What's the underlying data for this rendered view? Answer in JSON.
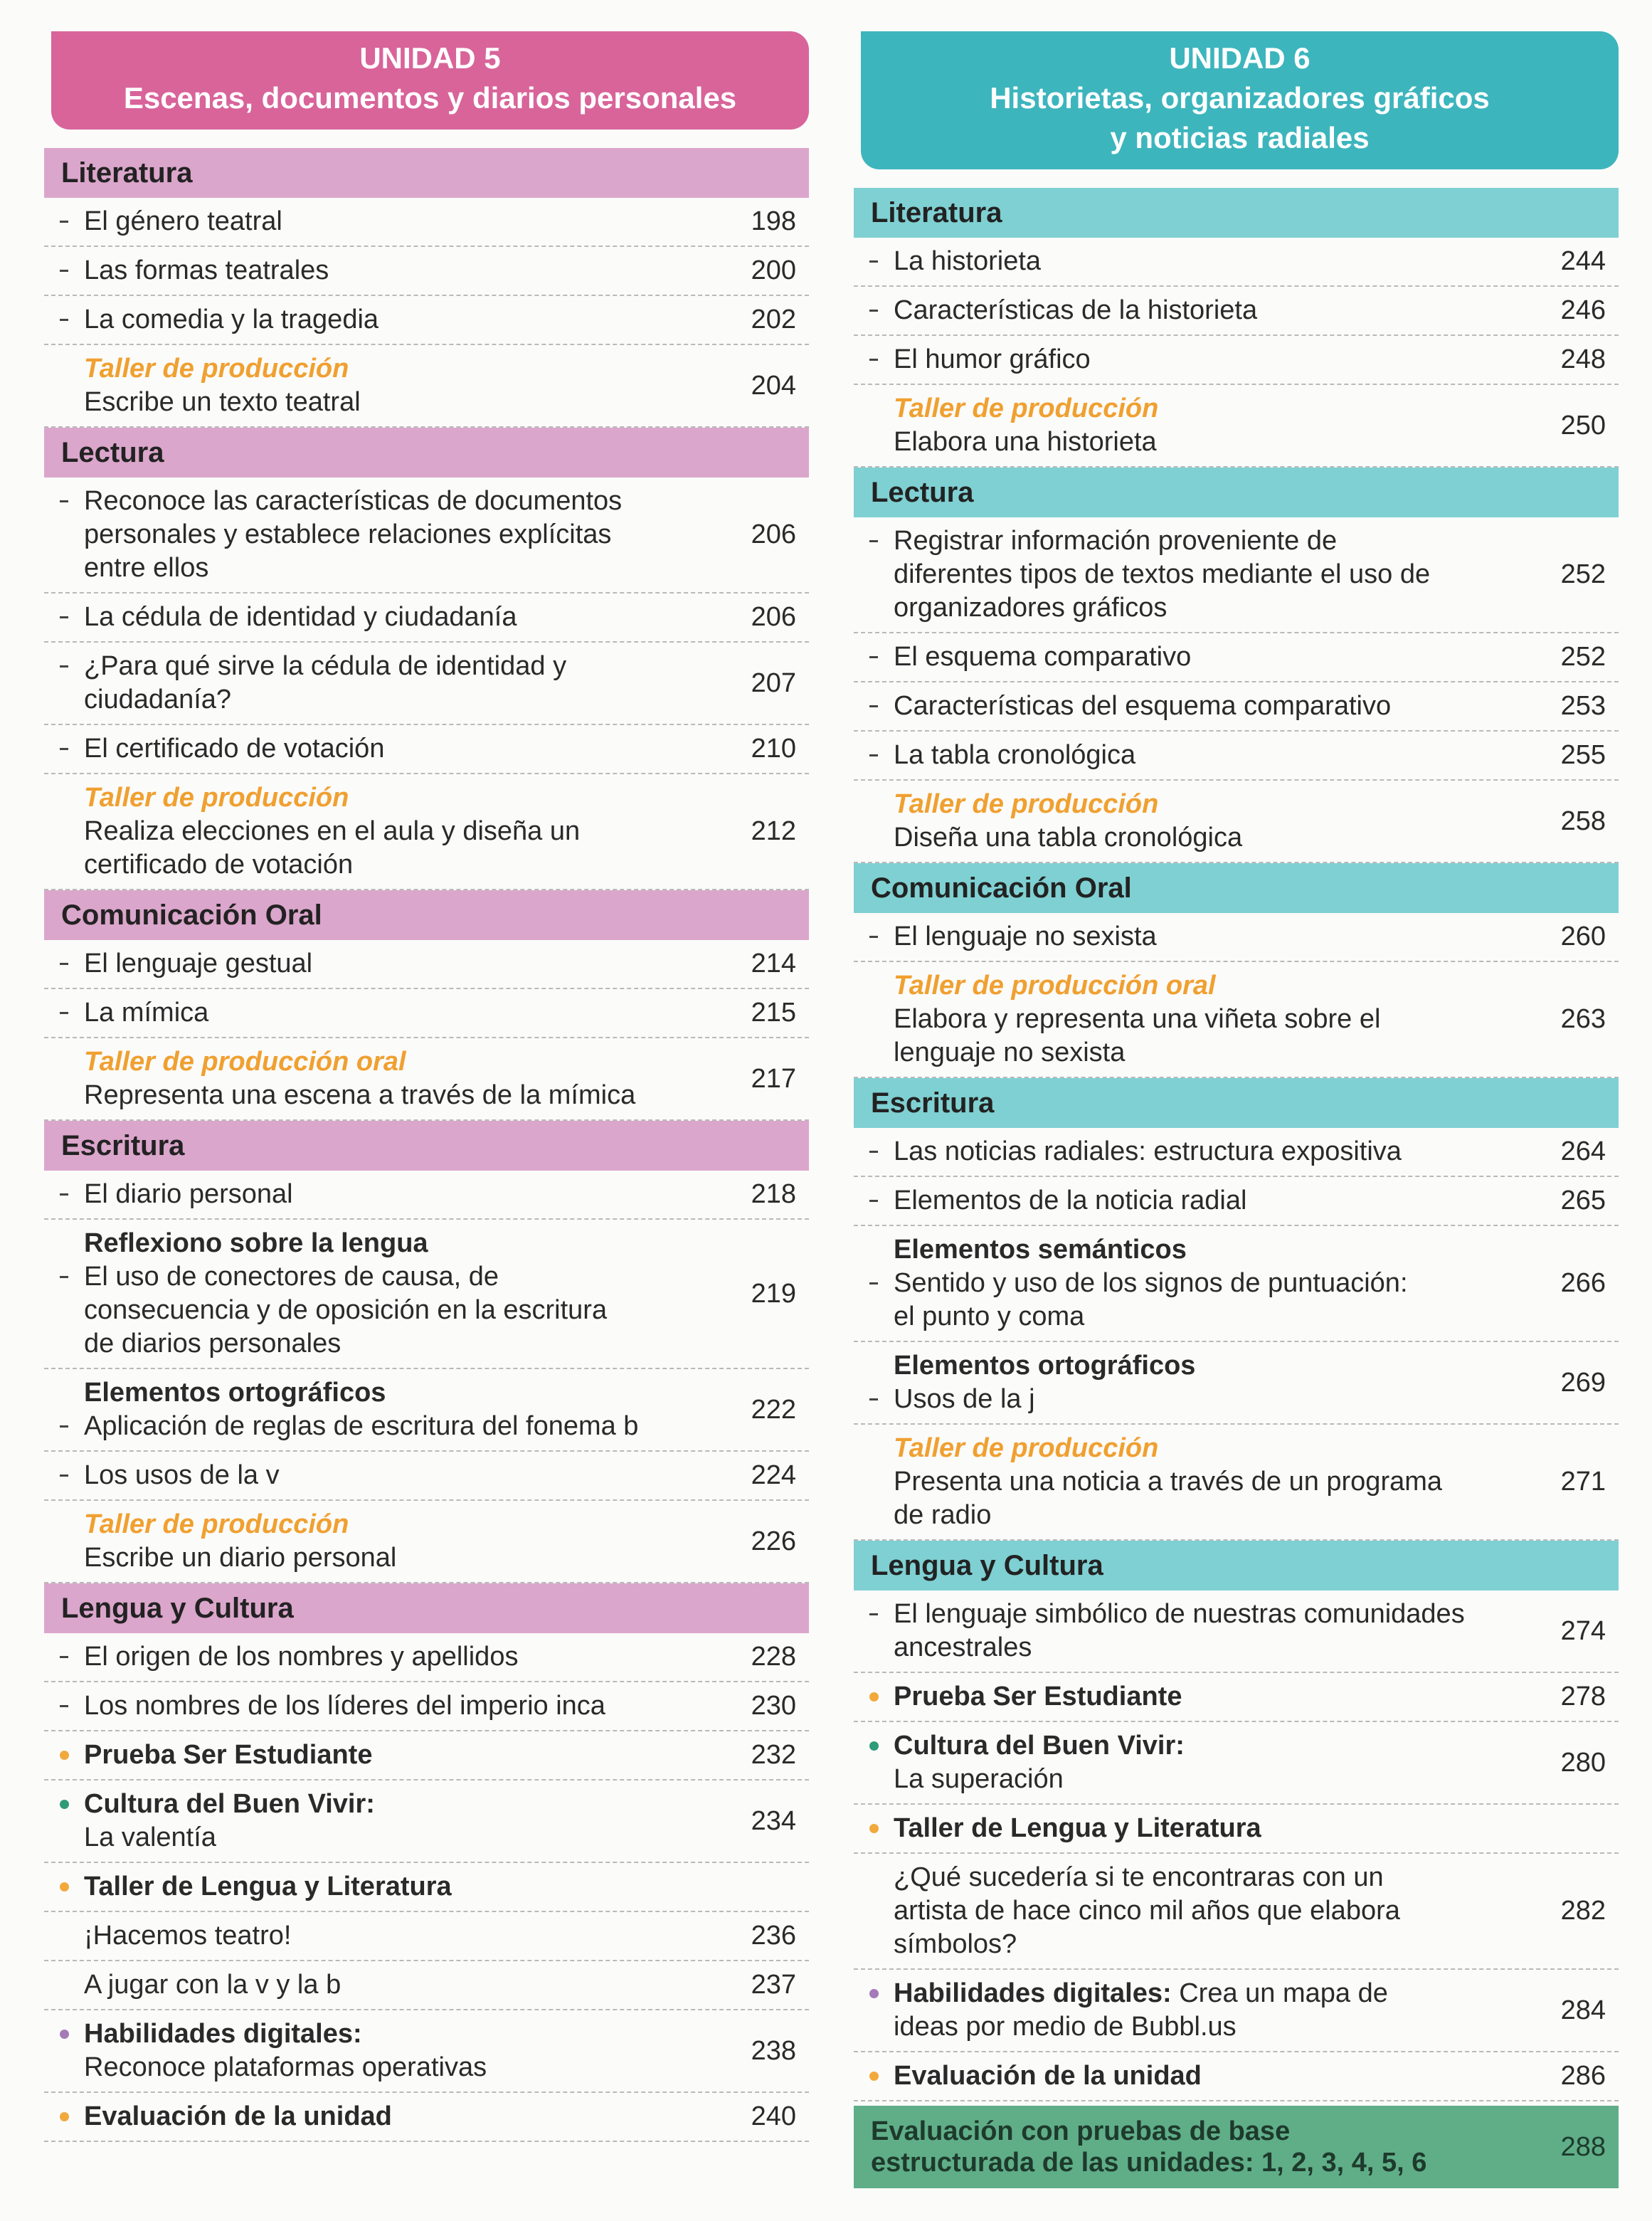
{
  "units": [
    {
      "title": "UNIDAD 5",
      "subtitle": [
        "Escenas, documentos y diarios personales"
      ],
      "header_color": "#d8649a",
      "section_color": "#dba6cb",
      "sections": [
        {
          "heading": "Literatura",
          "items": [
            {
              "marker": "dash",
              "lines": [
                "El género teatral"
              ],
              "page": 198
            },
            {
              "marker": "dash",
              "lines": [
                "Las formas teatrales"
              ],
              "page": 200
            },
            {
              "marker": "dash",
              "lines": [
                "La comedia y la tragedia"
              ],
              "page": 202
            },
            {
              "tag": "Taller de producción",
              "lines": [
                "Escribe un texto teatral"
              ],
              "page": 204
            }
          ]
        },
        {
          "heading": "Lectura",
          "items": [
            {
              "marker": "dash",
              "lines": [
                "Reconoce las características de documentos",
                "personales y establece relaciones explícitas",
                "entre ellos"
              ],
              "page": 206
            },
            {
              "marker": "dash",
              "lines": [
                "La cédula de identidad y ciudadanía"
              ],
              "page": 206
            },
            {
              "marker": "dash",
              "lines": [
                "¿Para qué sirve la cédula de identidad y",
                "ciudadanía?"
              ],
              "page": 207
            },
            {
              "marker": "dash",
              "lines": [
                "El certificado de votación"
              ],
              "page": 210
            },
            {
              "tag": "Taller de producción",
              "lines": [
                "Realiza elecciones en el aula y diseña un",
                "certificado de votación"
              ],
              "page": 212
            }
          ]
        },
        {
          "heading": "Comunicación Oral",
          "items": [
            {
              "marker": "dash",
              "lines": [
                "El lenguaje gestual"
              ],
              "page": 214
            },
            {
              "marker": "dash",
              "lines": [
                "La mímica"
              ],
              "page": 215
            },
            {
              "tag": "Taller de producción oral",
              "lines": [
                "Representa una escena a través de la mímica"
              ],
              "page": 217
            }
          ]
        },
        {
          "heading": "Escritura",
          "items": [
            {
              "marker": "dash",
              "lines": [
                "El diario personal"
              ],
              "page": 218
            },
            {
              "marker": "dash",
              "heading": "Reflexiono sobre la lengua",
              "lines": [
                "El uso de conectores de causa, de",
                "consecuencia  y de oposición en la escritura",
                "de diarios personales"
              ],
              "page": 219
            },
            {
              "marker": "dash",
              "heading": "Elementos ortográficos",
              "lines": [
                "Aplicación de reglas de escritura del fonema b"
              ],
              "page": 222
            },
            {
              "marker": "dash",
              "lines": [
                "Los usos de la v"
              ],
              "page": 224
            },
            {
              "tag": "Taller de producción",
              "lines": [
                "Escribe un diario personal"
              ],
              "page": 226
            }
          ]
        },
        {
          "heading": "Lengua y Cultura",
          "items": [
            {
              "marker": "dash",
              "lines": [
                "El origen de los nombres y apellidos"
              ],
              "page": 228
            },
            {
              "marker": "dash",
              "lines": [
                "Los nombres de los líderes del imperio inca"
              ],
              "page": 230
            },
            {
              "marker": "dot",
              "dot_color": "#f2a93b",
              "title": "Prueba Ser Estudiante",
              "lines": [],
              "page": 232
            },
            {
              "marker": "dot",
              "dot_color": "#2f9b78",
              "title": "Cultura del Buen Vivir:",
              "lines": [
                "La valentía"
              ],
              "page": 234
            },
            {
              "marker": "dot",
              "dot_color": "#f2a93b",
              "title": "Taller de Lengua y Literatura",
              "lines": []
            },
            {
              "lines": [
                "¡Hacemos teatro!"
              ],
              "page": 236
            },
            {
              "lines": [
                "A jugar con la v y la b"
              ],
              "page": 237
            },
            {
              "marker": "dot",
              "dot_color": "#a57ab8",
              "title": "Habilidades digitales:",
              "lines": [
                "Reconoce plataformas operativas"
              ],
              "page": 238
            },
            {
              "marker": "dot",
              "dot_color": "#f2a93b",
              "title": "Evaluación de la unidad",
              "lines": [],
              "page": 240
            }
          ]
        }
      ]
    },
    {
      "title": "UNIDAD 6",
      "subtitle": [
        "Historietas, organizadores gráficos",
        "y noticias radiales"
      ],
      "header_color": "#3db5bd",
      "section_color": "#7fd0d2",
      "sections": [
        {
          "heading": "Literatura",
          "items": [
            {
              "marker": "dash",
              "lines": [
                "La historieta"
              ],
              "page": 244
            },
            {
              "marker": "dash",
              "lines": [
                "Características de la historieta"
              ],
              "page": 246
            },
            {
              "marker": "dash",
              "lines": [
                "El humor gráfico"
              ],
              "page": 248
            },
            {
              "tag": "Taller de producción",
              "lines": [
                "Elabora una historieta"
              ],
              "page": 250
            }
          ]
        },
        {
          "heading": "Lectura",
          "items": [
            {
              "marker": "dash",
              "lines": [
                "Registrar información proveniente de",
                "diferentes tipos de textos mediante el uso de",
                "organizadores gráficos"
              ],
              "page": 252
            },
            {
              "marker": "dash",
              "lines": [
                "El esquema comparativo"
              ],
              "page": 252
            },
            {
              "marker": "dash",
              "lines": [
                "Características del esquema comparativo"
              ],
              "page": 253
            },
            {
              "marker": "dash",
              "lines": [
                "La tabla cronológica"
              ],
              "page": 255
            },
            {
              "tag": "Taller de producción",
              "lines": [
                "Diseña una tabla cronológica"
              ],
              "page": 258
            }
          ]
        },
        {
          "heading": "Comunicación Oral",
          "items": [
            {
              "marker": "dash",
              "lines": [
                "El lenguaje no sexista"
              ],
              "page": 260
            },
            {
              "tag": "Taller de producción oral",
              "lines": [
                "Elabora y representa una viñeta sobre el",
                "lenguaje no sexista"
              ],
              "page": 263
            }
          ]
        },
        {
          "heading": "Escritura",
          "items": [
            {
              "marker": "dash",
              "lines": [
                "Las noticias radiales: estructura expositiva"
              ],
              "page": 264
            },
            {
              "marker": "dash",
              "lines": [
                "Elementos de la noticia radial"
              ],
              "page": 265
            },
            {
              "marker": "dash",
              "heading": "Elementos semánticos",
              "lines": [
                "Sentido y uso de los signos de puntuación:",
                "el punto y coma"
              ],
              "page": 266
            },
            {
              "marker": "dash",
              "heading": "Elementos ortográficos",
              "lines": [
                "Usos de la j"
              ],
              "page": 269
            },
            {
              "tag": "Taller de producción",
              "lines": [
                "Presenta una noticia a través de un programa",
                "de radio"
              ],
              "page": 271
            }
          ]
        },
        {
          "heading": "Lengua y Cultura",
          "items": [
            {
              "marker": "dash",
              "lines": [
                "El lenguaje simbólico de nuestras comunidades",
                "ancestrales"
              ],
              "page": 274
            },
            {
              "marker": "dot",
              "dot_color": "#f2a93b",
              "title": "Prueba Ser Estudiante",
              "lines": [],
              "page": 278
            },
            {
              "marker": "dot",
              "dot_color": "#2f9b78",
              "title": "Cultura del Buen Vivir:",
              "lines": [
                "La superación"
              ],
              "page": 280
            },
            {
              "marker": "dot",
              "dot_color": "#f2a93b",
              "title": "Taller de Lengua y Literatura",
              "lines": []
            },
            {
              "lines": [
                "¿Qué sucedería si te encontraras con un",
                "artista de hace cinco mil años que elabora",
                "símbolos?"
              ],
              "page": 282
            },
            {
              "marker": "dot",
              "dot_color": "#a57ab8",
              "title": "Habilidades digitales:",
              "inline": true,
              "lines": [
                "Crea un mapa de",
                "ideas por medio de Bubbl.us"
              ],
              "page": 284
            },
            {
              "marker": "dot",
              "dot_color": "#f2a93b",
              "title": "Evaluación de la unidad",
              "lines": [],
              "page": 286
            }
          ]
        }
      ],
      "final": {
        "color": "#5fae88",
        "lines": [
          "Evaluación con pruebas de base",
          "estructurada de las unidades: 1, 2, 3, 4, 5, 6"
        ],
        "page": 288
      }
    }
  ]
}
